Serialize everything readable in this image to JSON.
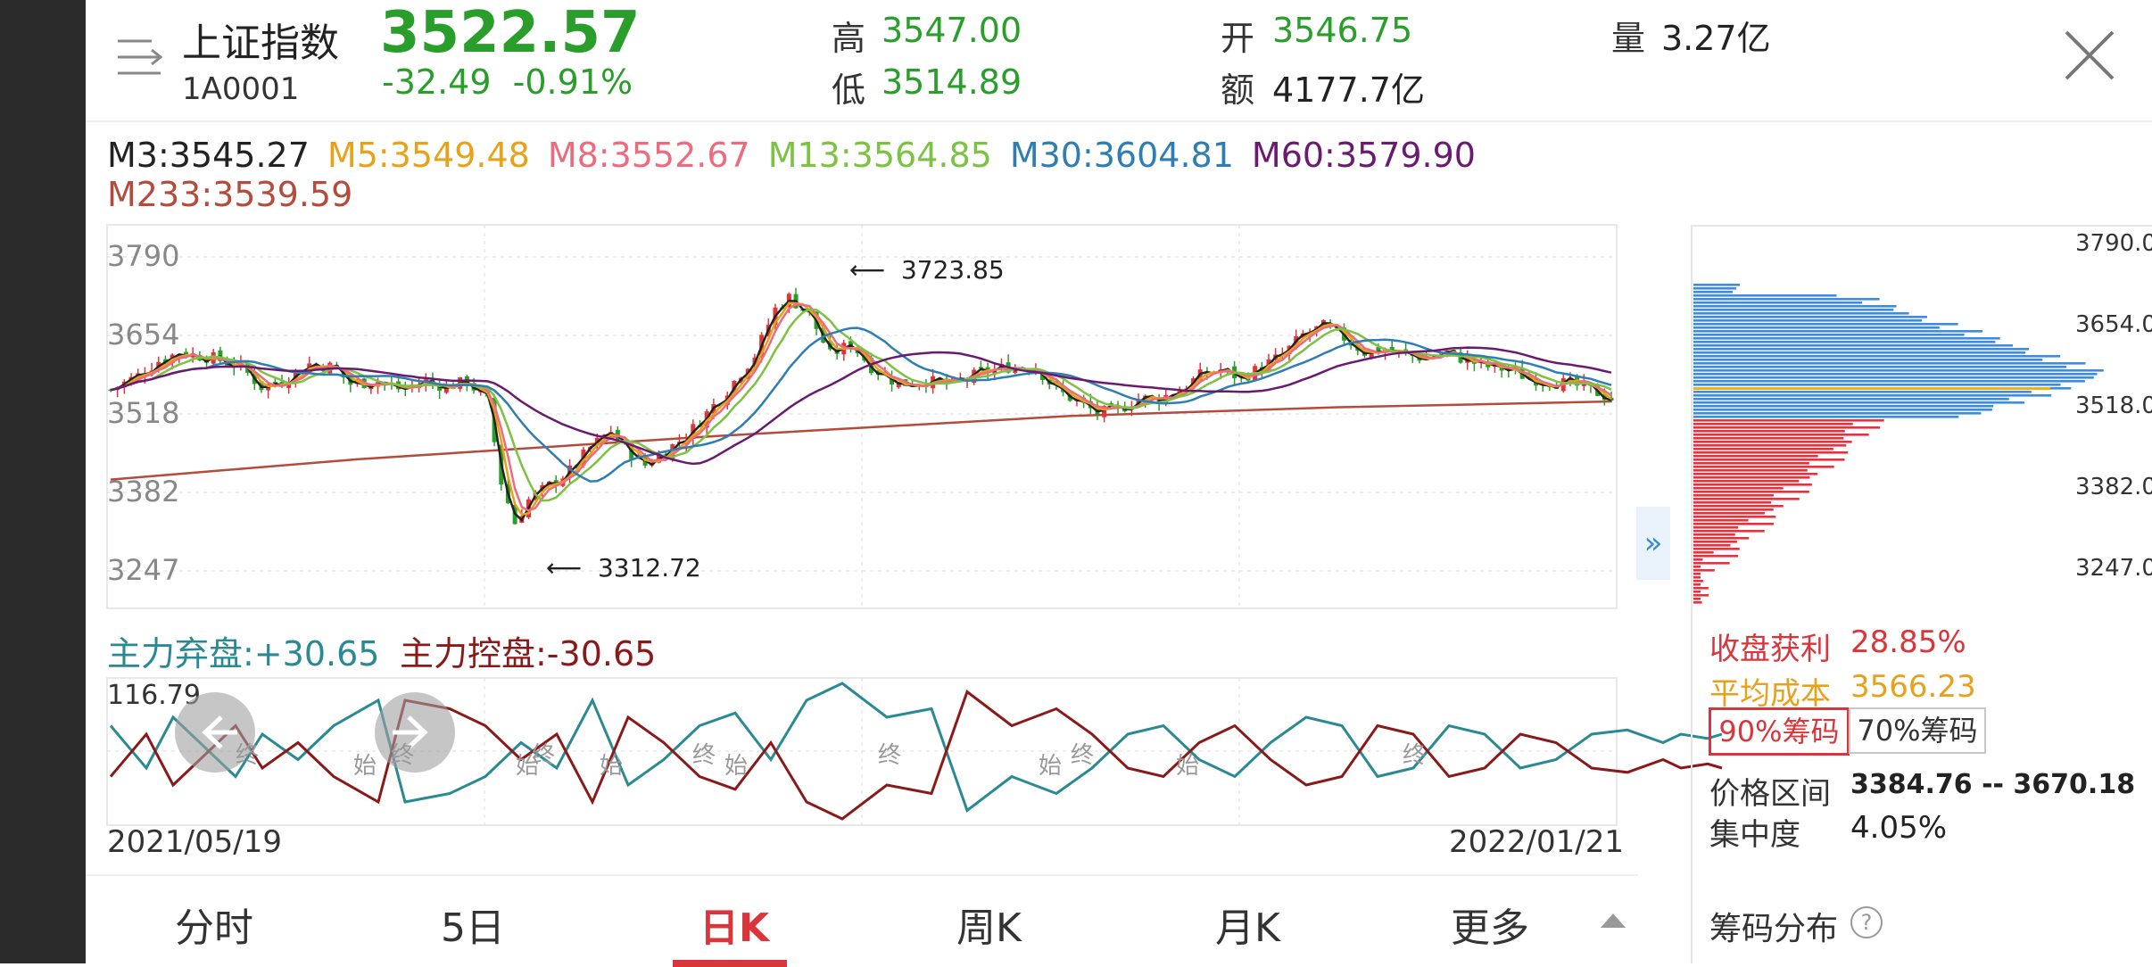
{
  "header": {
    "name": "上证指数",
    "code": "1A0001",
    "price": "3522.57",
    "change": "-32.49",
    "change_pct": "-0.91%",
    "high_label": "高",
    "high": "3547.00",
    "low_label": "低",
    "low": "3514.89",
    "open_label": "开",
    "open": "3546.75",
    "amount_label": "额",
    "amount": "4177.7亿",
    "volume_label": "量",
    "volume": "3.27亿"
  },
  "ma": [
    {
      "label": "M3:3545.27",
      "color": "#222222"
    },
    {
      "label": "M5:3549.48",
      "color": "#e8a21a"
    },
    {
      "label": "M8:3552.67",
      "color": "#ee6b7f"
    },
    {
      "label": "M13:3564.85",
      "color": "#7cc243"
    },
    {
      "label": "M30:3604.81",
      "color": "#2e7db3"
    },
    {
      "label": "M60:3579.90",
      "color": "#6a1b70"
    },
    {
      "label": "M233:3539.59",
      "color": "#b44b3c"
    }
  ],
  "kline": {
    "y_ticks": [
      "3790",
      "3654",
      "3518",
      "3382",
      "3247"
    ],
    "high_annotation": "3723.85",
    "low_annotation": "3312.72"
  },
  "indicator": {
    "abandon_label": "主力弃盘:+30.65",
    "control_label": "主力控盘:-30.65",
    "top_value": "116.79",
    "end_mark": "终",
    "start_mark": "始",
    "teal_color": "#2a8a94",
    "dark_red_color": "#8a1a1a"
  },
  "dates": {
    "start": "2021/05/19",
    "end": "2022/01/21"
  },
  "tabs": [
    "分时",
    "5日",
    "日K",
    "周K",
    "月K",
    "更多"
  ],
  "active_tab": "日K",
  "chip_panel": {
    "axis": [
      "3790.0",
      "3654.0",
      "3518.0",
      "3382.0",
      "3247.0"
    ],
    "profit_label": "收盘获利",
    "profit_value": "28.85%",
    "avg_cost_label": "平均成本",
    "avg_cost_value": "3566.23",
    "btn_90": "90%筹码",
    "btn_70": "70%筹码",
    "range_label": "价格区间",
    "range_value": "3384.76 -- 3670.18",
    "concentration_label": "集中度",
    "concentration_value": "4.05%",
    "title": "筹码分布",
    "help": "?"
  },
  "colors": {
    "up": "#e0353a",
    "down": "#2a9e2a",
    "chip_profit": "#e0353a",
    "chip_loss": "#3b8fd9",
    "avg_cost_line": "#e8b21a"
  }
}
